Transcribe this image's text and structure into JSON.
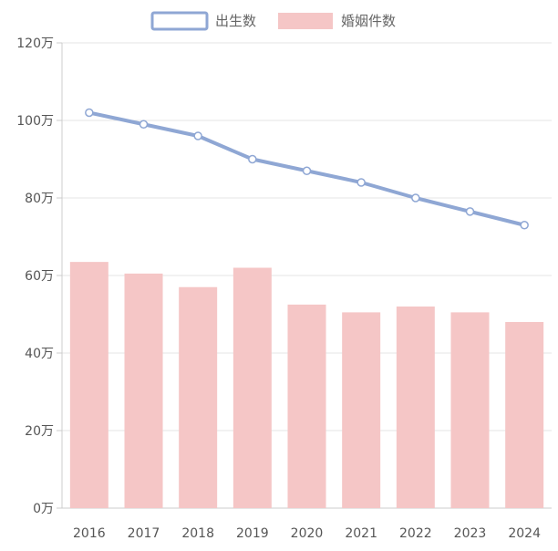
{
  "chart_data": {
    "type": "bar",
    "categories": [
      "2016",
      "2017",
      "2018",
      "2019",
      "2020",
      "2021",
      "2022",
      "2023",
      "2024"
    ],
    "series": [
      {
        "name": "出生数",
        "type": "line",
        "values": [
          102,
          99,
          96,
          90,
          87,
          84,
          80,
          76.5,
          73
        ],
        "color": "#8fa7d4"
      },
      {
        "name": "婚姻件数",
        "type": "bar",
        "values": [
          63.5,
          60.5,
          57,
          62,
          52.5,
          50.5,
          52,
          50.5,
          48
        ],
        "color": "#f5c6c6"
      }
    ],
    "ylim": [
      0,
      120
    ],
    "y_ticks": [
      "0万",
      "20万",
      "40万",
      "60万",
      "80万",
      "100万",
      "120万"
    ],
    "y_tick_values": [
      0,
      20,
      40,
      60,
      80,
      100,
      120
    ],
    "grid": true,
    "legend_position": "top-center",
    "title": "",
    "xlabel": "",
    "ylabel": ""
  }
}
